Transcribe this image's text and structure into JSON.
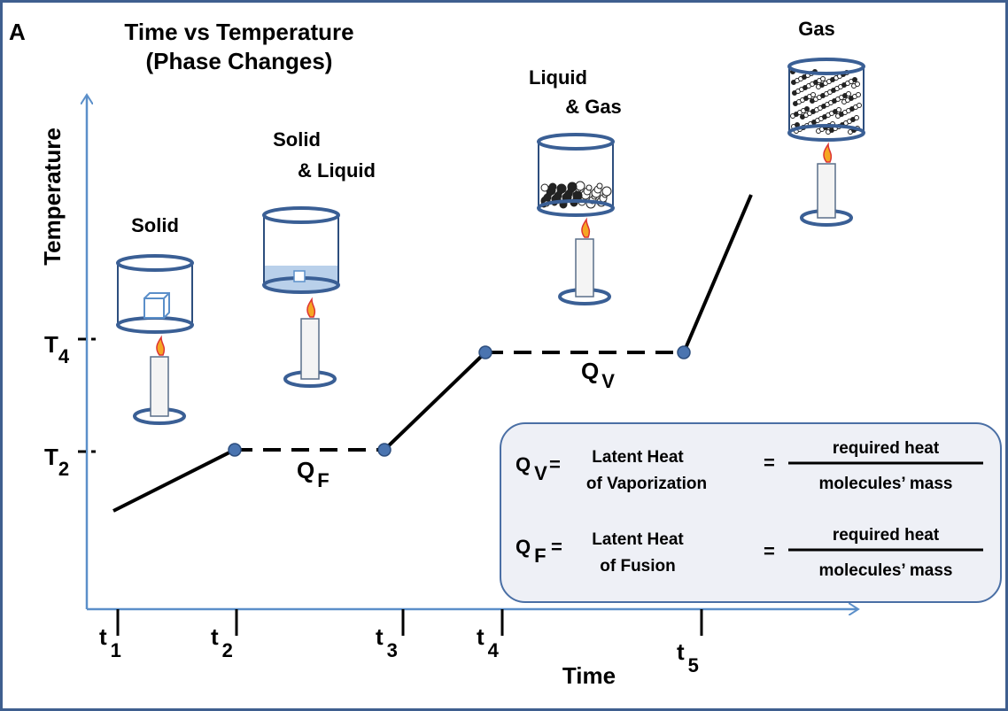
{
  "panel_label": "A",
  "title": [
    "Time vs Temperature",
    "(Phase Changes)"
  ],
  "y_axis": {
    "label": "Temperature",
    "ticks": [
      {
        "symbol": "T",
        "sub": "4"
      },
      {
        "symbol": "T",
        "sub": "2"
      }
    ]
  },
  "x_axis": {
    "label": "Time",
    "ticks": [
      {
        "symbol": "t",
        "sub": "1"
      },
      {
        "symbol": "t",
        "sub": "2"
      },
      {
        "symbol": "t",
        "sub": "3"
      },
      {
        "symbol": "t",
        "sub": "4"
      },
      {
        "symbol": "t",
        "sub": "5"
      }
    ]
  },
  "phases": [
    {
      "lines": [
        "Solid"
      ]
    },
    {
      "lines": [
        "Solid",
        "& Liquid"
      ]
    },
    {
      "lines": [
        "Liquid",
        "& Gas"
      ]
    },
    {
      "lines": [
        "Gas"
      ]
    }
  ],
  "segment_labels": [
    {
      "symbol": "Q",
      "sub": "F"
    },
    {
      "symbol": "Q",
      "sub": "V"
    }
  ],
  "formulas": [
    {
      "symbol": "Q",
      "sub": "V",
      "eq1": "=",
      "name": [
        "Latent Heat",
        "of Vaporization"
      ],
      "eq2": "=",
      "numerator": "required heat",
      "denominator": "molecules’ mass"
    },
    {
      "symbol": "Q",
      "sub": "F",
      "eq1": "=",
      "name": [
        "Latent Heat",
        "of Fusion"
      ],
      "eq2": "=",
      "numerator": "required heat",
      "denominator": "molecules’ mass"
    }
  ]
}
